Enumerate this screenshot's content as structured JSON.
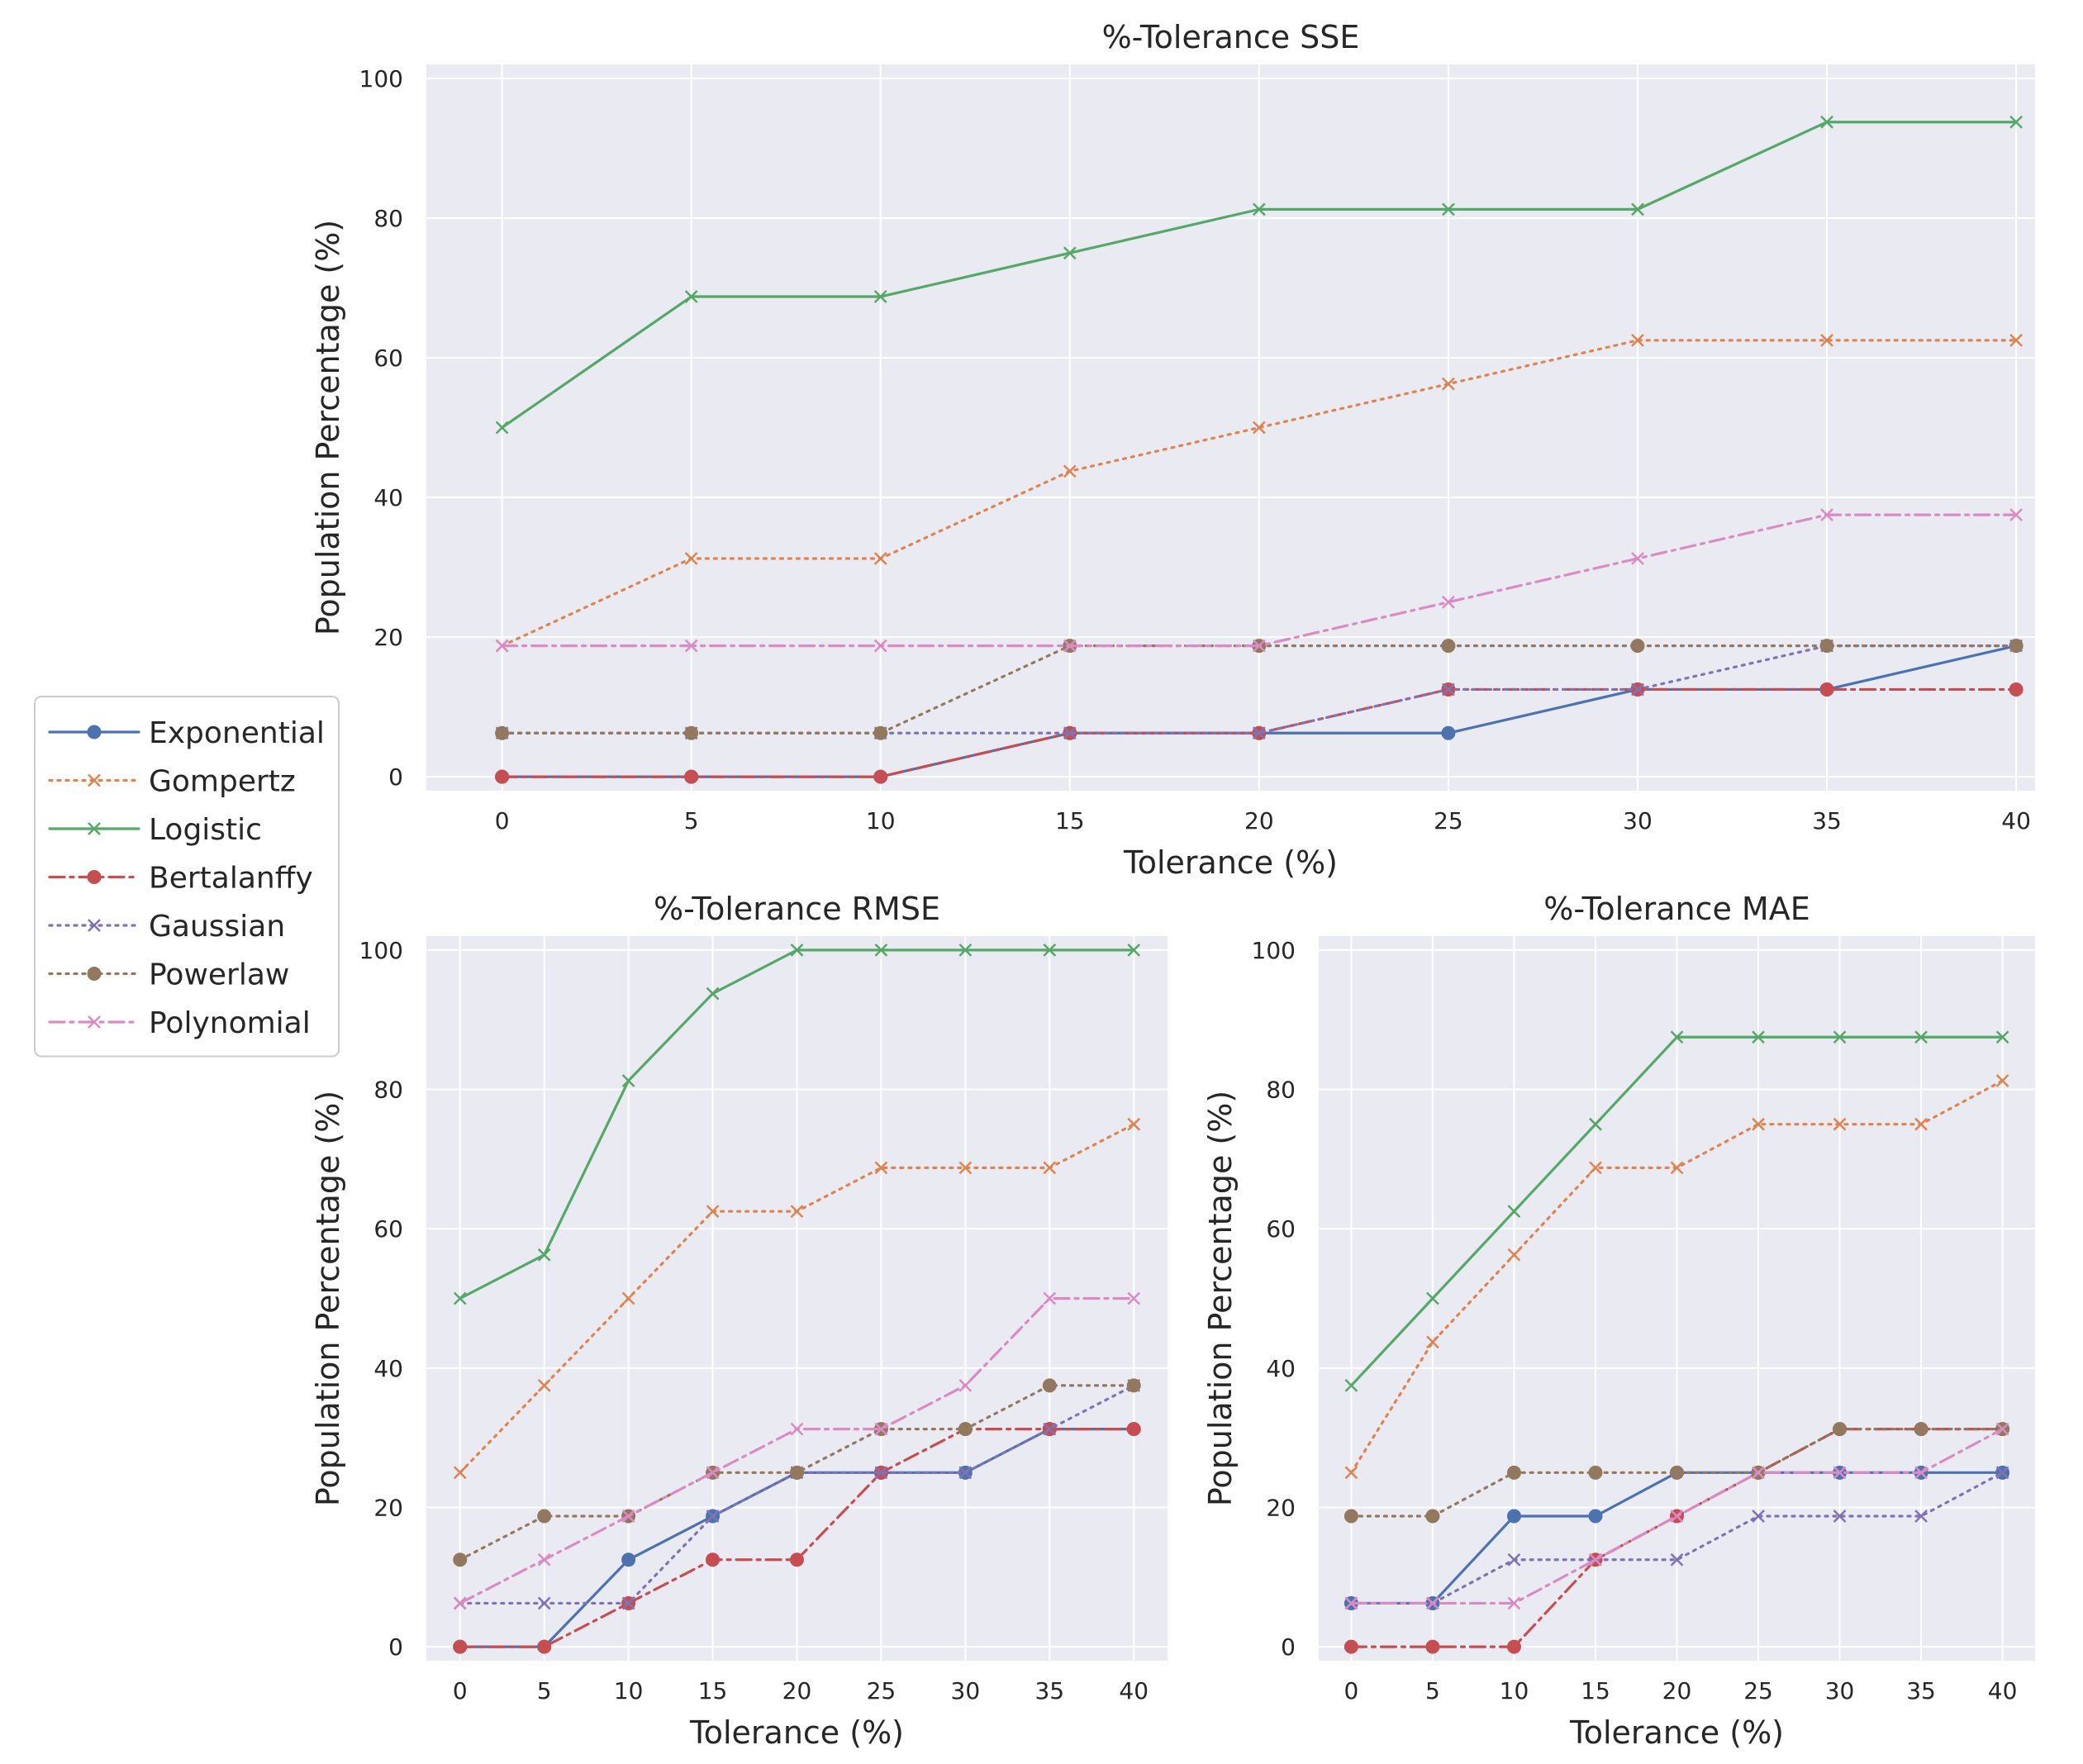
{
  "chart_data": [
    {
      "type": "line",
      "title": "%-Tolerance SSE",
      "xlabel": "Tolerance (%)",
      "ylabel": "Population Percentage (%)",
      "x": [
        0,
        5,
        10,
        15,
        20,
        25,
        30,
        35,
        40
      ],
      "xticks": [
        "0",
        "5",
        "10",
        "15",
        "20",
        "25",
        "30",
        "35",
        "40"
      ],
      "yticks": [
        "0",
        "20",
        "40",
        "60",
        "80",
        "100"
      ],
      "xlim": [
        -2,
        40.5
      ],
      "ylim": [
        -2,
        102
      ],
      "grid": true,
      "series": [
        {
          "name": "Exponential",
          "values": [
            0,
            0,
            0,
            6.25,
            6.25,
            6.25,
            12.5,
            12.5,
            18.75
          ]
        },
        {
          "name": "Gompertz",
          "values": [
            18.75,
            31.25,
            31.25,
            43.75,
            50,
            56.25,
            62.5,
            62.5,
            62.5
          ]
        },
        {
          "name": "Logistic",
          "values": [
            50,
            68.75,
            68.75,
            75,
            81.25,
            81.25,
            81.25,
            93.75,
            93.75
          ]
        },
        {
          "name": "Bertalanffy",
          "values": [
            0,
            0,
            0,
            6.25,
            6.25,
            12.5,
            12.5,
            12.5,
            12.5
          ]
        },
        {
          "name": "Gaussian",
          "values": [
            6.25,
            6.25,
            6.25,
            6.25,
            6.25,
            12.5,
            12.5,
            18.75,
            18.75
          ]
        },
        {
          "name": "Powerlaw",
          "values": [
            6.25,
            6.25,
            6.25,
            18.75,
            18.75,
            18.75,
            18.75,
            18.75,
            18.75
          ]
        },
        {
          "name": "Polynomial",
          "values": [
            18.75,
            18.75,
            18.75,
            18.75,
            18.75,
            25,
            31.25,
            37.5,
            37.5
          ]
        }
      ]
    },
    {
      "type": "line",
      "title": "%-Tolerance RMSE",
      "xlabel": "Tolerance (%)",
      "ylabel": "Population Percentage (%)",
      "x": [
        0,
        5,
        10,
        15,
        20,
        25,
        30,
        35,
        40
      ],
      "xticks": [
        "0",
        "5",
        "10",
        "15",
        "20",
        "25",
        "30",
        "35",
        "40"
      ],
      "yticks": [
        "0",
        "20",
        "40",
        "60",
        "80",
        "100"
      ],
      "xlim": [
        -2,
        42
      ],
      "ylim": [
        -2,
        102
      ],
      "grid": true,
      "series": [
        {
          "name": "Exponential",
          "values": [
            0,
            0,
            12.5,
            18.75,
            25,
            25,
            25,
            31.25,
            31.25
          ]
        },
        {
          "name": "Gompertz",
          "values": [
            25,
            37.5,
            50,
            62.5,
            62.5,
            68.75,
            68.75,
            68.75,
            75
          ]
        },
        {
          "name": "Logistic",
          "values": [
            50,
            56.25,
            81.25,
            93.75,
            100,
            100,
            100,
            100,
            100
          ]
        },
        {
          "name": "Bertalanffy",
          "values": [
            0,
            0,
            6.25,
            12.5,
            12.5,
            25,
            31.25,
            31.25,
            31.25
          ]
        },
        {
          "name": "Gaussian",
          "values": [
            6.25,
            6.25,
            6.25,
            18.75,
            25,
            25,
            25,
            31.25,
            37.5
          ]
        },
        {
          "name": "Powerlaw",
          "values": [
            12.5,
            18.75,
            18.75,
            25,
            25,
            31.25,
            31.25,
            37.5,
            37.5
          ]
        },
        {
          "name": "Polynomial",
          "values": [
            6.25,
            12.5,
            18.75,
            25,
            31.25,
            31.25,
            37.5,
            50,
            50
          ]
        }
      ]
    },
    {
      "type": "line",
      "title": "%-Tolerance MAE",
      "xlabel": "Tolerance (%)",
      "ylabel": "Population Percentage (%)",
      "x": [
        0,
        5,
        10,
        15,
        20,
        25,
        30,
        35,
        40
      ],
      "xticks": [
        "0",
        "5",
        "10",
        "15",
        "20",
        "25",
        "30",
        "35",
        "40"
      ],
      "yticks": [
        "0",
        "20",
        "40",
        "60",
        "80",
        "100"
      ],
      "xlim": [
        -2,
        42
      ],
      "ylim": [
        -2,
        102
      ],
      "grid": true,
      "series": [
        {
          "name": "Exponential",
          "values": [
            6.25,
            6.25,
            18.75,
            18.75,
            25,
            25,
            25,
            25,
            25
          ]
        },
        {
          "name": "Gompertz",
          "values": [
            25,
            43.75,
            56.25,
            68.75,
            68.75,
            75,
            75,
            75,
            81.25
          ]
        },
        {
          "name": "Logistic",
          "values": [
            37.5,
            50,
            62.5,
            75,
            87.5,
            87.5,
            87.5,
            87.5,
            87.5
          ]
        },
        {
          "name": "Bertalanffy",
          "values": [
            0,
            0,
            0,
            12.5,
            18.75,
            25,
            31.25,
            31.25,
            31.25
          ]
        },
        {
          "name": "Gaussian",
          "values": [
            6.25,
            6.25,
            12.5,
            12.5,
            12.5,
            18.75,
            18.75,
            18.75,
            25
          ]
        },
        {
          "name": "Powerlaw",
          "values": [
            18.75,
            18.75,
            25,
            25,
            25,
            25,
            31.25,
            31.25,
            31.25
          ]
        },
        {
          "name": "Polynomial",
          "values": [
            6.25,
            6.25,
            6.25,
            12.5,
            18.75,
            25,
            25,
            25,
            31.25
          ]
        }
      ]
    }
  ],
  "legend": {
    "placement": "center-left",
    "entries": [
      "Exponential",
      "Gompertz",
      "Logistic",
      "Bertalanffy",
      "Gaussian",
      "Powerlaw",
      "Polynomial"
    ]
  },
  "series_styles": {
    "Exponential": {
      "color": "#4c72b0",
      "dash": "solid",
      "marker": "circle"
    },
    "Gompertz": {
      "color": "#dd8452",
      "dash": "dotted",
      "marker": "x"
    },
    "Logistic": {
      "color": "#55a868",
      "dash": "solid",
      "marker": "x"
    },
    "Bertalanffy": {
      "color": "#c44e52",
      "dash": "dashdot",
      "marker": "circle"
    },
    "Gaussian": {
      "color": "#8172b3",
      "dash": "dotted",
      "marker": "x"
    },
    "Powerlaw": {
      "color": "#937860",
      "dash": "dotted",
      "marker": "circle"
    },
    "Polynomial": {
      "color": "#da8bc3",
      "dash": "dashdot",
      "marker": "x"
    }
  },
  "colors": {
    "axes_background": "#eaeaf2",
    "grid": "#ffffff",
    "text": "#262626",
    "legend_border": "#cccccc"
  }
}
